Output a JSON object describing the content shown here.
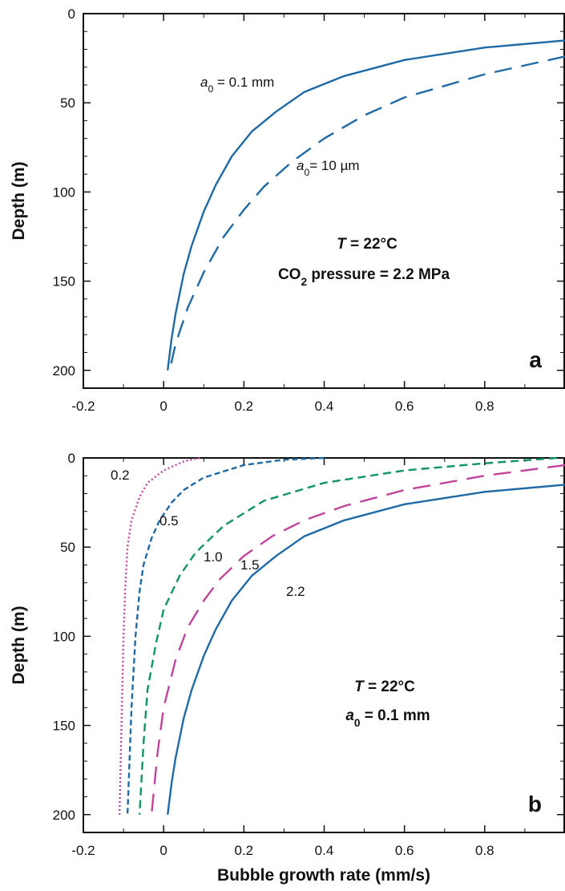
{
  "chart_data": [
    {
      "type": "line",
      "panel_label": "a",
      "xlabel": "",
      "ylabel": "Depth (m)",
      "xlim": [
        -0.2,
        1.0
      ],
      "ylim": [
        0,
        210
      ],
      "y_inverted": true,
      "xticks": [
        -0.2,
        0,
        0.2,
        0.4,
        0.6,
        0.8
      ],
      "xtick_labels": [
        "-0.2",
        "0",
        "0.2",
        "0.4",
        "0.6",
        "0.8"
      ],
      "yticks": [
        0,
        50,
        100,
        150,
        200
      ],
      "ytick_labels": [
        "0",
        "50",
        "100",
        "150",
        "200"
      ],
      "annotations": [
        {
          "var": "T",
          "text": " = 22°C"
        },
        {
          "pre": "CO",
          "sub": "2",
          "post": " pressure = 2.2 MPa"
        }
      ],
      "series": [
        {
          "label": {
            "var": "a",
            "sub": "0",
            "text": " = 0.1 mm"
          },
          "color": "#1f6aa5",
          "dash": "solid",
          "x": [
            1.0,
            0.8,
            0.6,
            0.45,
            0.35,
            0.28,
            0.22,
            0.17,
            0.13,
            0.1,
            0.07,
            0.05,
            0.03,
            0.02,
            0.01
          ],
          "y": [
            15,
            19,
            26,
            35,
            44,
            55,
            66,
            80,
            96,
            111,
            130,
            146,
            168,
            182,
            200
          ]
        },
        {
          "label": {
            "var": "a",
            "sub": "0",
            "text": "= 10 µm"
          },
          "color": "#1f6aa5",
          "dash": "long",
          "x": [
            1.0,
            0.8,
            0.6,
            0.5,
            0.4,
            0.32,
            0.25,
            0.2,
            0.15,
            0.1,
            0.06,
            0.03,
            0.015
          ],
          "y": [
            24,
            34,
            47,
            57,
            70,
            83,
            97,
            110,
            125,
            145,
            165,
            185,
            200
          ]
        }
      ]
    },
    {
      "type": "line",
      "panel_label": "b",
      "xlabel": "Bubble growth rate (mm/s)",
      "ylabel": "Depth (m)",
      "xlim": [
        -0.2,
        1.0
      ],
      "ylim": [
        0,
        210
      ],
      "y_inverted": true,
      "xticks": [
        -0.2,
        0,
        0.2,
        0.4,
        0.6,
        0.8
      ],
      "xtick_labels": [
        "-0.2",
        "0",
        "0.2",
        "0.4",
        "0.6",
        "0.8"
      ],
      "yticks": [
        0,
        50,
        100,
        150,
        200
      ],
      "ytick_labels": [
        "0",
        "50",
        "100",
        "150",
        "200"
      ],
      "annotations": [
        {
          "var": "T",
          "text": " = 22°C"
        },
        {
          "var": "a",
          "sub": "0",
          "text": " = 0.1 mm"
        }
      ],
      "series": [
        {
          "label": {
            "text": "0.2"
          },
          "color": "#c0449a",
          "dash": "dot",
          "x": [
            0.09,
            0.05,
            0.0,
            -0.04,
            -0.06,
            -0.08,
            -0.09,
            -0.095,
            -0.1,
            -0.105,
            -0.11
          ],
          "y": [
            0,
            2,
            7,
            14,
            22,
            35,
            50,
            70,
            100,
            150,
            200
          ]
        },
        {
          "label": {
            "text": "0.5"
          },
          "color": "#1f6aa5",
          "dash": "short",
          "x": [
            0.4,
            0.3,
            0.2,
            0.1,
            0.05,
            0.02,
            -0.01,
            -0.03,
            -0.05,
            -0.06,
            -0.07,
            -0.08,
            -0.09
          ],
          "y": [
            0,
            1,
            4,
            11,
            18,
            25,
            35,
            45,
            60,
            75,
            100,
            140,
            200
          ]
        },
        {
          "label": {
            "text": "1.0"
          },
          "color": "#119463",
          "dash": "medium",
          "x": [
            0.98,
            0.8,
            0.6,
            0.4,
            0.25,
            0.15,
            0.08,
            0.04,
            0.0,
            -0.02,
            -0.04,
            -0.05,
            -0.06
          ],
          "y": [
            0,
            3,
            7,
            14,
            24,
            38,
            53,
            66,
            85,
            105,
            130,
            160,
            200
          ]
        },
        {
          "label": {
            "text": "1.5"
          },
          "color": "#c0449a",
          "dash": "long",
          "x": [
            1.0,
            0.8,
            0.6,
            0.45,
            0.35,
            0.27,
            0.2,
            0.14,
            0.1,
            0.06,
            0.03,
            0.0,
            -0.015,
            -0.03
          ],
          "y": [
            4,
            10,
            18,
            27,
            35,
            44,
            55,
            68,
            80,
            95,
            113,
            140,
            165,
            200
          ]
        },
        {
          "label": {
            "text": "2.2"
          },
          "color": "#1f6aa5",
          "dash": "solid",
          "x": [
            1.0,
            0.8,
            0.6,
            0.45,
            0.35,
            0.28,
            0.22,
            0.17,
            0.13,
            0.1,
            0.07,
            0.05,
            0.03,
            0.02,
            0.01
          ],
          "y": [
            15,
            19,
            26,
            35,
            44,
            55,
            66,
            80,
            96,
            111,
            130,
            146,
            168,
            182,
            200
          ]
        }
      ]
    }
  ]
}
